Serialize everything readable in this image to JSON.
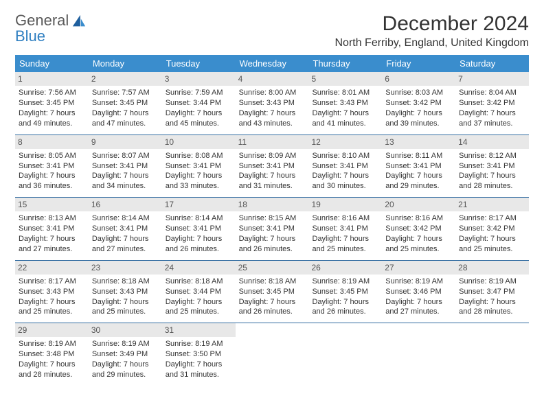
{
  "logo": {
    "line1": "General",
    "line2": "Blue"
  },
  "title": "December 2024",
  "location": "North Ferriby, England, United Kingdom",
  "colors": {
    "header_bg": "#3a8dcd",
    "header_text": "#ffffff",
    "daynum_bg": "#e8e8e8",
    "row_border": "#2f6aa0",
    "body_text": "#333333",
    "logo_gray": "#5a5a5a",
    "logo_blue": "#2f7fc1"
  },
  "day_labels": [
    "Sunday",
    "Monday",
    "Tuesday",
    "Wednesday",
    "Thursday",
    "Friday",
    "Saturday"
  ],
  "weeks": [
    [
      {
        "n": "1",
        "sr": "Sunrise: 7:56 AM",
        "ss": "Sunset: 3:45 PM",
        "d1": "Daylight: 7 hours",
        "d2": "and 49 minutes."
      },
      {
        "n": "2",
        "sr": "Sunrise: 7:57 AM",
        "ss": "Sunset: 3:45 PM",
        "d1": "Daylight: 7 hours",
        "d2": "and 47 minutes."
      },
      {
        "n": "3",
        "sr": "Sunrise: 7:59 AM",
        "ss": "Sunset: 3:44 PM",
        "d1": "Daylight: 7 hours",
        "d2": "and 45 minutes."
      },
      {
        "n": "4",
        "sr": "Sunrise: 8:00 AM",
        "ss": "Sunset: 3:43 PM",
        "d1": "Daylight: 7 hours",
        "d2": "and 43 minutes."
      },
      {
        "n": "5",
        "sr": "Sunrise: 8:01 AM",
        "ss": "Sunset: 3:43 PM",
        "d1": "Daylight: 7 hours",
        "d2": "and 41 minutes."
      },
      {
        "n": "6",
        "sr": "Sunrise: 8:03 AM",
        "ss": "Sunset: 3:42 PM",
        "d1": "Daylight: 7 hours",
        "d2": "and 39 minutes."
      },
      {
        "n": "7",
        "sr": "Sunrise: 8:04 AM",
        "ss": "Sunset: 3:42 PM",
        "d1": "Daylight: 7 hours",
        "d2": "and 37 minutes."
      }
    ],
    [
      {
        "n": "8",
        "sr": "Sunrise: 8:05 AM",
        "ss": "Sunset: 3:41 PM",
        "d1": "Daylight: 7 hours",
        "d2": "and 36 minutes."
      },
      {
        "n": "9",
        "sr": "Sunrise: 8:07 AM",
        "ss": "Sunset: 3:41 PM",
        "d1": "Daylight: 7 hours",
        "d2": "and 34 minutes."
      },
      {
        "n": "10",
        "sr": "Sunrise: 8:08 AM",
        "ss": "Sunset: 3:41 PM",
        "d1": "Daylight: 7 hours",
        "d2": "and 33 minutes."
      },
      {
        "n": "11",
        "sr": "Sunrise: 8:09 AM",
        "ss": "Sunset: 3:41 PM",
        "d1": "Daylight: 7 hours",
        "d2": "and 31 minutes."
      },
      {
        "n": "12",
        "sr": "Sunrise: 8:10 AM",
        "ss": "Sunset: 3:41 PM",
        "d1": "Daylight: 7 hours",
        "d2": "and 30 minutes."
      },
      {
        "n": "13",
        "sr": "Sunrise: 8:11 AM",
        "ss": "Sunset: 3:41 PM",
        "d1": "Daylight: 7 hours",
        "d2": "and 29 minutes."
      },
      {
        "n": "14",
        "sr": "Sunrise: 8:12 AM",
        "ss": "Sunset: 3:41 PM",
        "d1": "Daylight: 7 hours",
        "d2": "and 28 minutes."
      }
    ],
    [
      {
        "n": "15",
        "sr": "Sunrise: 8:13 AM",
        "ss": "Sunset: 3:41 PM",
        "d1": "Daylight: 7 hours",
        "d2": "and 27 minutes."
      },
      {
        "n": "16",
        "sr": "Sunrise: 8:14 AM",
        "ss": "Sunset: 3:41 PM",
        "d1": "Daylight: 7 hours",
        "d2": "and 27 minutes."
      },
      {
        "n": "17",
        "sr": "Sunrise: 8:14 AM",
        "ss": "Sunset: 3:41 PM",
        "d1": "Daylight: 7 hours",
        "d2": "and 26 minutes."
      },
      {
        "n": "18",
        "sr": "Sunrise: 8:15 AM",
        "ss": "Sunset: 3:41 PM",
        "d1": "Daylight: 7 hours",
        "d2": "and 26 minutes."
      },
      {
        "n": "19",
        "sr": "Sunrise: 8:16 AM",
        "ss": "Sunset: 3:41 PM",
        "d1": "Daylight: 7 hours",
        "d2": "and 25 minutes."
      },
      {
        "n": "20",
        "sr": "Sunrise: 8:16 AM",
        "ss": "Sunset: 3:42 PM",
        "d1": "Daylight: 7 hours",
        "d2": "and 25 minutes."
      },
      {
        "n": "21",
        "sr": "Sunrise: 8:17 AM",
        "ss": "Sunset: 3:42 PM",
        "d1": "Daylight: 7 hours",
        "d2": "and 25 minutes."
      }
    ],
    [
      {
        "n": "22",
        "sr": "Sunrise: 8:17 AM",
        "ss": "Sunset: 3:43 PM",
        "d1": "Daylight: 7 hours",
        "d2": "and 25 minutes."
      },
      {
        "n": "23",
        "sr": "Sunrise: 8:18 AM",
        "ss": "Sunset: 3:43 PM",
        "d1": "Daylight: 7 hours",
        "d2": "and 25 minutes."
      },
      {
        "n": "24",
        "sr": "Sunrise: 8:18 AM",
        "ss": "Sunset: 3:44 PM",
        "d1": "Daylight: 7 hours",
        "d2": "and 25 minutes."
      },
      {
        "n": "25",
        "sr": "Sunrise: 8:18 AM",
        "ss": "Sunset: 3:45 PM",
        "d1": "Daylight: 7 hours",
        "d2": "and 26 minutes."
      },
      {
        "n": "26",
        "sr": "Sunrise: 8:19 AM",
        "ss": "Sunset: 3:45 PM",
        "d1": "Daylight: 7 hours",
        "d2": "and 26 minutes."
      },
      {
        "n": "27",
        "sr": "Sunrise: 8:19 AM",
        "ss": "Sunset: 3:46 PM",
        "d1": "Daylight: 7 hours",
        "d2": "and 27 minutes."
      },
      {
        "n": "28",
        "sr": "Sunrise: 8:19 AM",
        "ss": "Sunset: 3:47 PM",
        "d1": "Daylight: 7 hours",
        "d2": "and 28 minutes."
      }
    ],
    [
      {
        "n": "29",
        "sr": "Sunrise: 8:19 AM",
        "ss": "Sunset: 3:48 PM",
        "d1": "Daylight: 7 hours",
        "d2": "and 28 minutes."
      },
      {
        "n": "30",
        "sr": "Sunrise: 8:19 AM",
        "ss": "Sunset: 3:49 PM",
        "d1": "Daylight: 7 hours",
        "d2": "and 29 minutes."
      },
      {
        "n": "31",
        "sr": "Sunrise: 8:19 AM",
        "ss": "Sunset: 3:50 PM",
        "d1": "Daylight: 7 hours",
        "d2": "and 31 minutes."
      },
      {
        "n": "",
        "sr": "",
        "ss": "",
        "d1": "",
        "d2": "",
        "empty": true
      },
      {
        "n": "",
        "sr": "",
        "ss": "",
        "d1": "",
        "d2": "",
        "empty": true
      },
      {
        "n": "",
        "sr": "",
        "ss": "",
        "d1": "",
        "d2": "",
        "empty": true
      },
      {
        "n": "",
        "sr": "",
        "ss": "",
        "d1": "",
        "d2": "",
        "empty": true
      }
    ]
  ]
}
